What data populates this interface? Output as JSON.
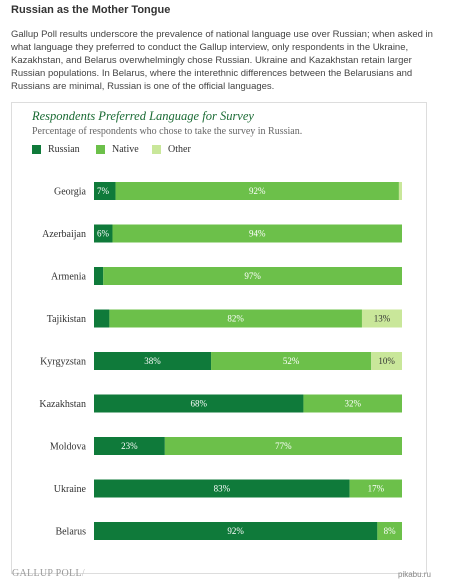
{
  "article": {
    "title": "Russian as the Mother Tongue",
    "body": "Gallup Poll results underscore the prevalence of national language use over Russian; when asked in what language they preferred to conduct the Gallup interview, only respondents in the Ukraine, Kazakhstan, and Belarus overwhelmingly chose Russian. Ukraine and Kazakhstan retain larger Russian populations. In Belarus, where the interethnic differences between the Belarusians and Russians are minimal, Russian is one of the official languages."
  },
  "chart_data": {
    "type": "bar",
    "orientation": "horizontal",
    "stacked": true,
    "title": "Respondents Preferred Language for Survey",
    "subtitle": "Percentage of respondents who chose to take the survey in Russian.",
    "categories": [
      "Georgia",
      "Azerbaijan",
      "Armenia",
      "Tajikistan",
      "Kyrgyzstan",
      "Kazakhstan",
      "Moldova",
      "Ukraine",
      "Belarus"
    ],
    "series": [
      {
        "name": "Russian",
        "color": "#0f7a3a",
        "values": [
          7,
          6,
          3,
          5,
          38,
          68,
          23,
          83,
          92
        ],
        "labels": [
          "7%",
          "6%",
          "",
          "",
          "38%",
          "68%",
          "23%",
          "83%",
          "92%"
        ]
      },
      {
        "name": "Native",
        "color": "#6cc04a",
        "values": [
          92,
          94,
          97,
          82,
          52,
          32,
          77,
          17,
          8
        ],
        "labels": [
          "92%",
          "94%",
          "97%",
          "82%",
          "52%",
          "32%",
          "77%",
          "17%",
          "8%"
        ]
      },
      {
        "name": "Other",
        "color": "#c9e79a",
        "values": [
          1,
          0,
          0,
          13,
          10,
          0,
          0,
          0,
          0
        ],
        "labels": [
          "",
          "",
          "",
          "13%",
          "10%",
          "",
          "",
          "",
          ""
        ]
      }
    ],
    "xlim": [
      0,
      100
    ],
    "legend_position": "top-left",
    "grid": false
  },
  "footer": {
    "brand": "GALLUP POLL",
    "watermark": "pikabu.ru"
  }
}
